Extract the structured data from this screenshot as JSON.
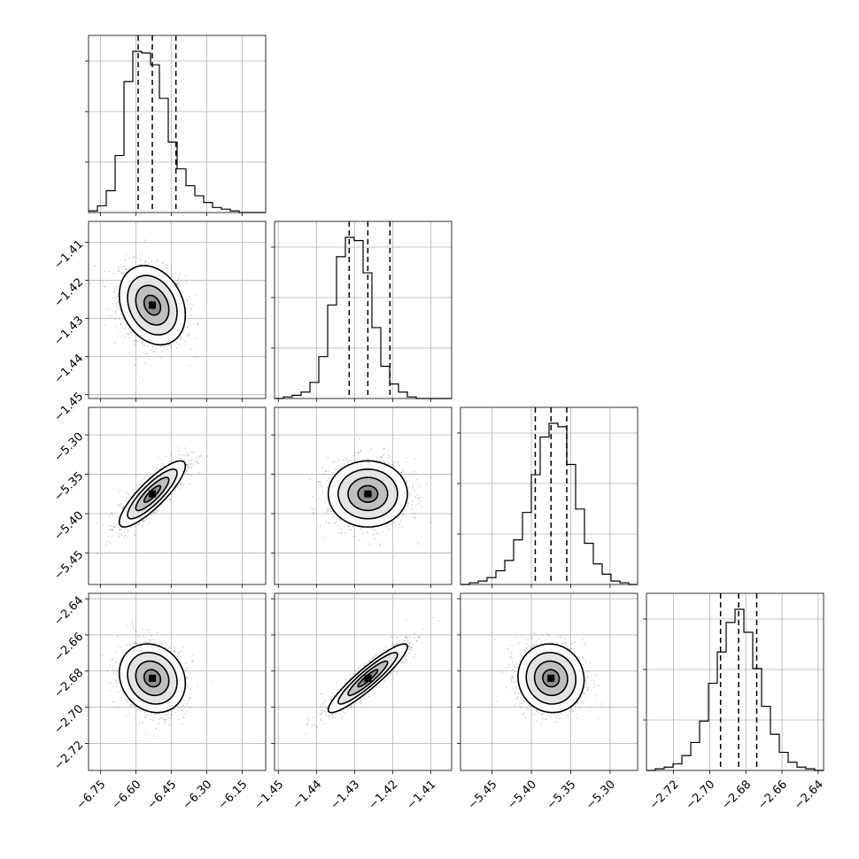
{
  "chart_data": {
    "type": "corner",
    "title": "",
    "grid": true,
    "parameters": [
      {
        "index": 0,
        "range": [
          -6.8,
          -6.05
        ],
        "median": -6.53,
        "quantiles": [
          -6.59,
          -6.53,
          -6.43
        ],
        "tick_values": [
          -6.75,
          -6.6,
          -6.45,
          -6.3,
          -6.15
        ],
        "tick_labels": [
          "−6.75",
          "−6.60",
          "−6.45",
          "−6.30",
          "−6.15"
        ],
        "std": 0.07,
        "hist_counts": [
          1,
          4,
          13,
          34,
          78,
          96,
          95,
          88,
          68,
          42,
          26,
          16,
          10,
          6,
          3,
          2,
          1,
          0,
          0,
          0
        ]
      },
      {
        "index": 1,
        "range": [
          -1.451,
          -1.4045
        ],
        "median": -1.4265,
        "quantiles": [
          -1.4314,
          -1.4265,
          -1.4207
        ],
        "tick_values": [
          -1.45,
          -1.44,
          -1.43,
          -1.42,
          -1.41
        ],
        "tick_labels": [
          "−1.45",
          "−1.44",
          "−1.43",
          "−1.42",
          "−1.41"
        ],
        "std": 0.0052,
        "hist_counts": [
          0,
          1,
          2,
          4,
          10,
          26,
          58,
          88,
          100,
          98,
          78,
          44,
          20,
          9,
          4,
          1,
          0,
          0,
          0,
          0
        ]
      },
      {
        "index": 2,
        "range": [
          -5.49,
          -5.265
        ],
        "median": -5.375,
        "quantiles": [
          -5.395,
          -5.375,
          -5.355
        ],
        "tick_values": [
          -5.45,
          -5.4,
          -5.35,
          -5.3
        ],
        "tick_labels": [
          "−5.45",
          "−5.40",
          "−5.35",
          "−5.30"
        ],
        "std": 0.021,
        "hist_counts": [
          0,
          1,
          2,
          4,
          8,
          14,
          26,
          42,
          64,
          86,
          94,
          92,
          70,
          44,
          24,
          12,
          6,
          2,
          1,
          0
        ]
      },
      {
        "index": 3,
        "range": [
          -2.735,
          -2.637
        ],
        "median": -2.684,
        "quantiles": [
          -2.694,
          -2.684,
          -2.674
        ],
        "tick_values": [
          -2.72,
          -2.7,
          -2.68,
          -2.66,
          -2.64
        ],
        "tick_labels": [
          "−2.72",
          "−2.70",
          "−2.68",
          "−2.66",
          "−2.64"
        ],
        "std": 0.0095,
        "hist_counts": [
          0,
          1,
          2,
          4,
          9,
          17,
          30,
          53,
          72,
          90,
          98,
          84,
          62,
          39,
          22,
          11,
          5,
          2,
          1,
          0
        ]
      }
    ],
    "pairs": [
      {
        "x": 0,
        "y": 1,
        "center": [
          -6.53,
          -1.4265
        ],
        "corr": -0.25,
        "contours_shown": 4
      },
      {
        "x": 0,
        "y": 2,
        "center": [
          -6.53,
          -5.375
        ],
        "corr": 0.85,
        "contours_shown": 4
      },
      {
        "x": 1,
        "y": 2,
        "center": [
          -1.4265,
          -5.375
        ],
        "corr": 0.0,
        "contours_shown": 4
      },
      {
        "x": 0,
        "y": 3,
        "center": [
          -6.53,
          -2.684
        ],
        "corr": -0.15,
        "contours_shown": 4
      },
      {
        "x": 1,
        "y": 3,
        "center": [
          -1.4265,
          -2.684
        ],
        "corr": 0.92,
        "contours_shown": 4
      },
      {
        "x": 2,
        "y": 3,
        "center": [
          -5.375,
          -2.684
        ],
        "corr": -0.05,
        "contours_shown": 4
      }
    ],
    "contour_levels_sigma": [
      0.5,
      1.0,
      1.5,
      2.0
    ]
  }
}
